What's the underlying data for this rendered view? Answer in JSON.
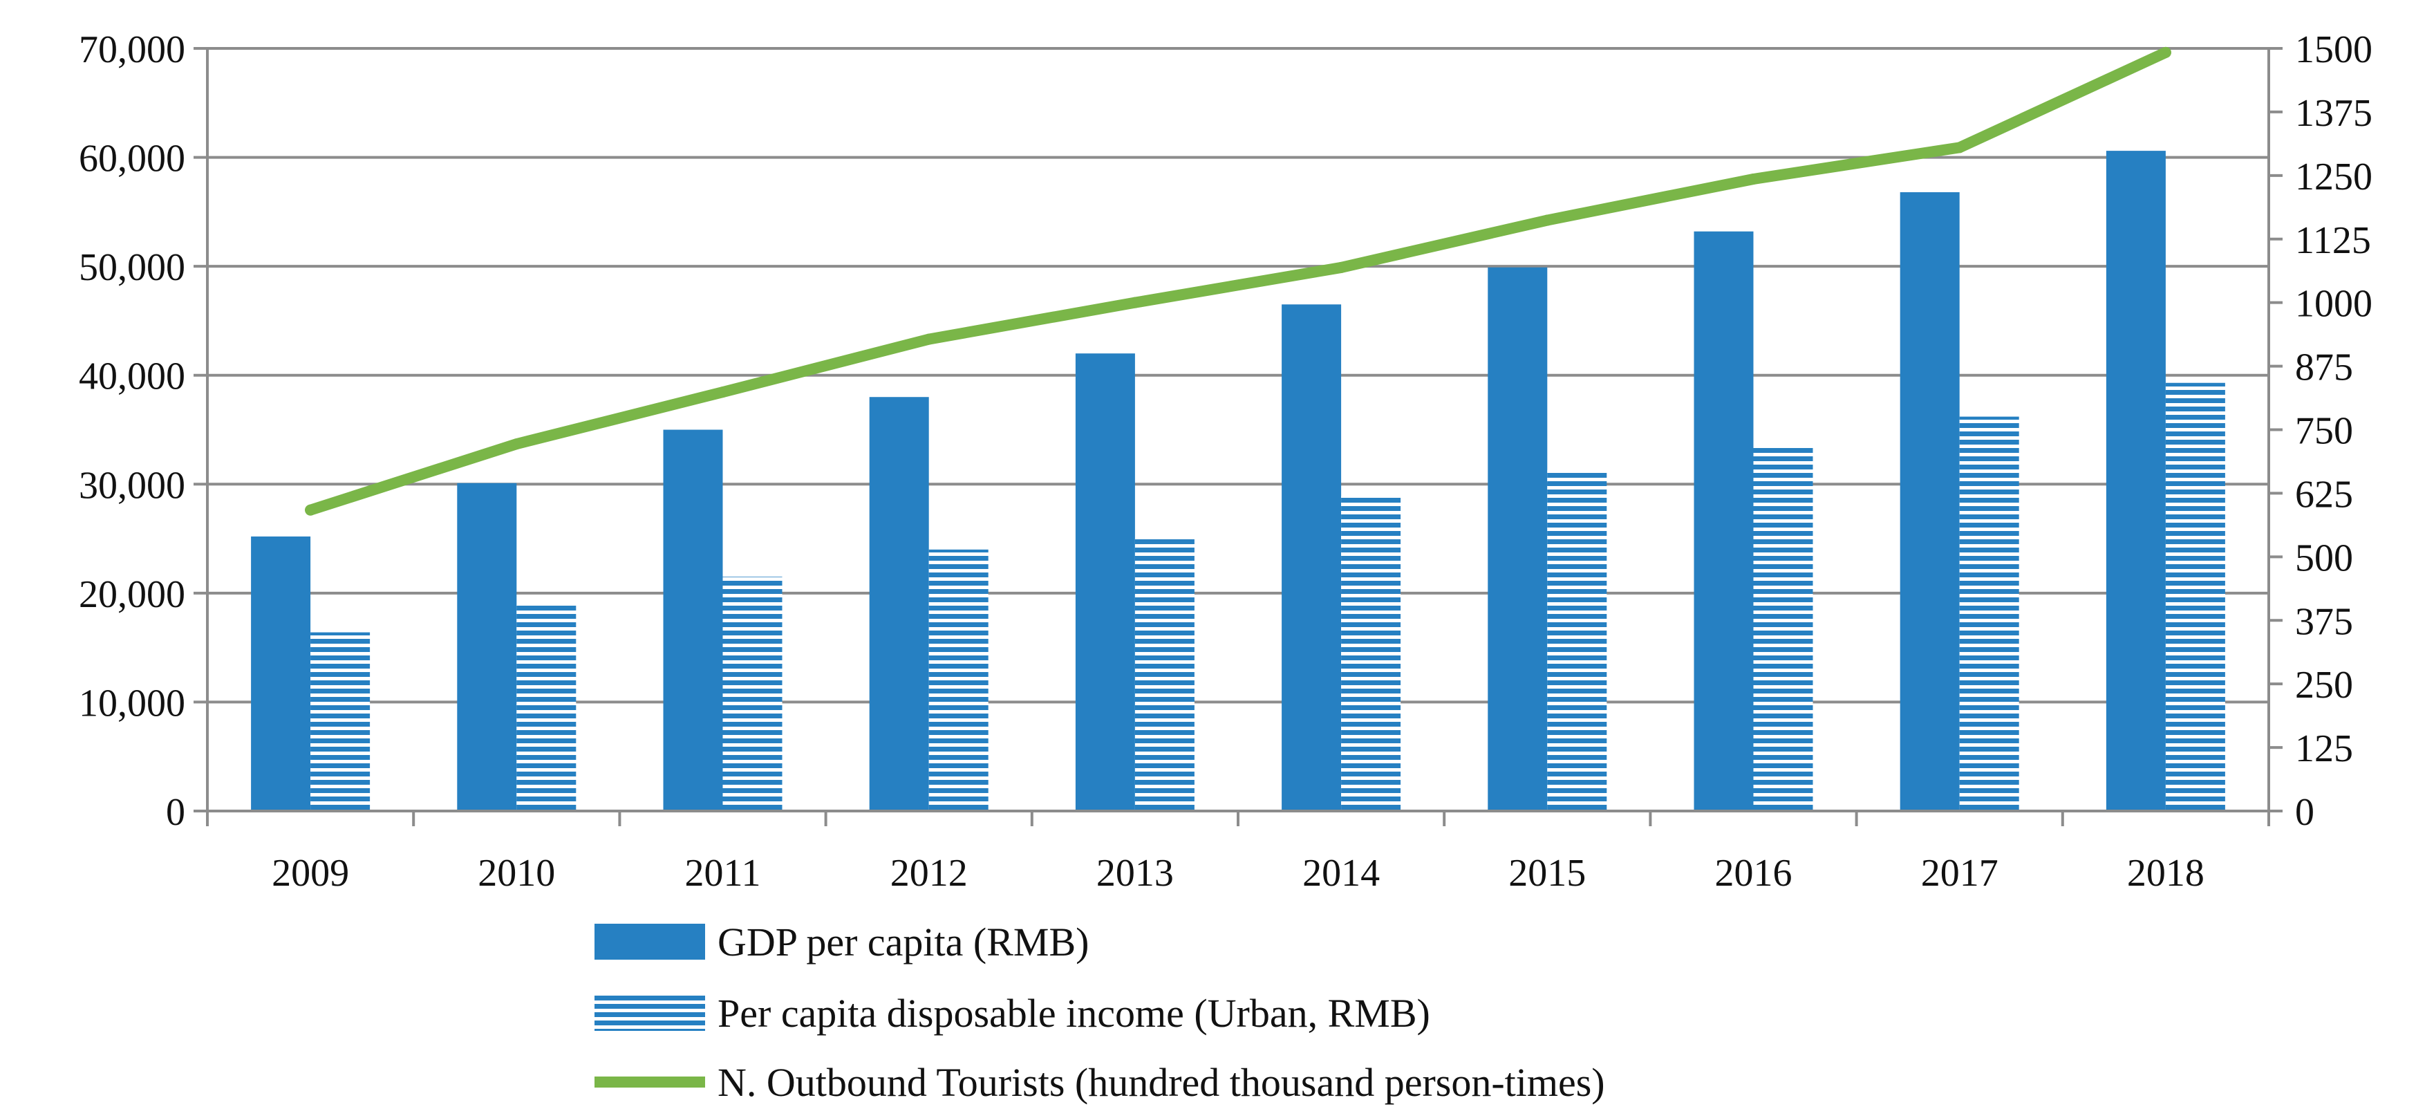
{
  "chart_data": {
    "type": "bar",
    "categories": [
      "2009",
      "2010",
      "2011",
      "2012",
      "2013",
      "2014",
      "2015",
      "2016",
      "2017",
      "2018"
    ],
    "series": [
      {
        "name": "GDP per capita (RMB)",
        "type": "bar",
        "axis": "left",
        "color": "#2680c2",
        "pattern": "solid",
        "values": [
          25200,
          30100,
          35000,
          38000,
          42000,
          46500,
          49900,
          53200,
          56800,
          60600
        ]
      },
      {
        "name": "Per capita disposable income (Urban, RMB)",
        "type": "bar",
        "axis": "left",
        "color": "#2680c2",
        "pattern": "horizontal-stripes",
        "values": [
          16400,
          18900,
          21500,
          24000,
          25000,
          28900,
          31300,
          33600,
          36200,
          39300
        ]
      },
      {
        "name": "N. Outbound Tourists (hundred thousand person-times)",
        "type": "line",
        "axis": "right",
        "color": "#7ab648",
        "values": [
          592,
          722,
          824,
          928,
          1000,
          1069,
          1162,
          1243,
          1305,
          1492
        ]
      }
    ],
    "y_left": {
      "ylim": [
        0,
        70000
      ],
      "ticks": [
        "0",
        "10,000",
        "20,000",
        "30,000",
        "40,000",
        "50,000",
        "60,000",
        "70,000"
      ]
    },
    "y_right": {
      "ylim": [
        0,
        1500
      ],
      "ticks": [
        "0",
        "125",
        "250",
        "375",
        "500",
        "625",
        "750",
        "875",
        "1000",
        "1125",
        "1250",
        "1375",
        "1500"
      ]
    },
    "grid": true,
    "legend_position": "bottom",
    "title": "",
    "xlabel": "",
    "ylabel": ""
  }
}
